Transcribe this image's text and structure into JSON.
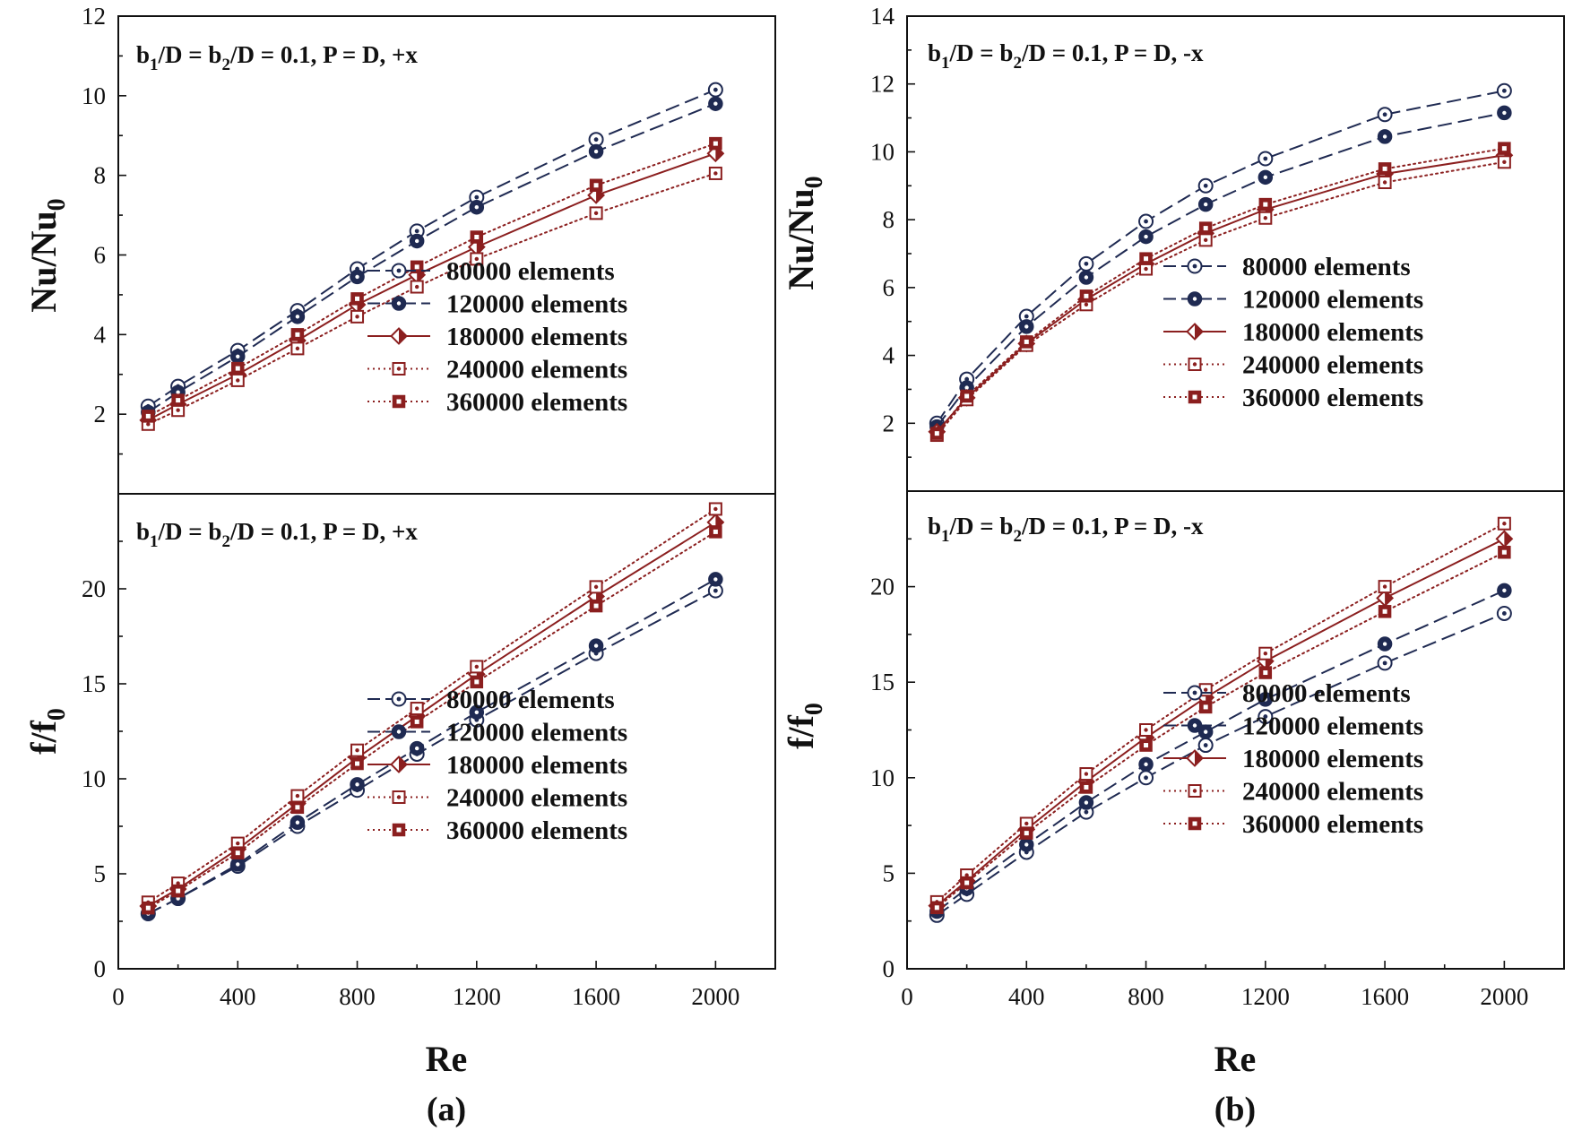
{
  "colors": {
    "navy": "#1f2a52",
    "maroon": "#8b1f1f",
    "axis": "#111111"
  },
  "legend": {
    "entries": [
      {
        "label": "80000 elements",
        "color": "#1f2a52",
        "dash": "dashed",
        "marker": "open-circle-dot"
      },
      {
        "label": "120000 elements",
        "color": "#1f2a52",
        "dash": "dashed",
        "marker": "filled-circle-dot"
      },
      {
        "label": "180000 elements",
        "color": "#8b1f1f",
        "dash": "solid",
        "marker": "diamond"
      },
      {
        "label": "240000 elements",
        "color": "#8b1f1f",
        "dash": "dotted",
        "marker": "open-square-dot"
      },
      {
        "label": "360000 elements",
        "color": "#8b1f1f",
        "dash": "dotted",
        "marker": "filled-square-dot"
      }
    ]
  },
  "chart_data": [
    {
      "id": "a-top",
      "type": "line",
      "annotation": {
        "b1": "b",
        "sub1": "1",
        "mid1": "/D = b",
        "sub2": "2",
        "rest": "/D = 0.1, P = D, +x"
      },
      "xlabel": "Re",
      "ylabel": {
        "main": "Nu/Nu",
        "sub": "0"
      },
      "xlim": [
        0,
        2200
      ],
      "ylim": [
        0,
        12
      ],
      "yticks": [
        2,
        4,
        6,
        8,
        10,
        12
      ],
      "legend_position": "bottom-right",
      "x": [
        100,
        200,
        400,
        600,
        800,
        1000,
        1200,
        1600,
        2000
      ],
      "series": [
        {
          "name": "80000 elements",
          "values": [
            2.2,
            2.7,
            3.6,
            4.6,
            5.65,
            6.6,
            7.45,
            8.9,
            10.15
          ]
        },
        {
          "name": "120000 elements",
          "values": [
            2.05,
            2.55,
            3.45,
            4.45,
            5.45,
            6.35,
            7.2,
            8.6,
            9.8
          ]
        },
        {
          "name": "180000 elements",
          "values": [
            1.85,
            2.25,
            3.0,
            3.85,
            4.75,
            5.5,
            6.2,
            7.5,
            8.55
          ]
        },
        {
          "name": "240000 elements",
          "values": [
            1.75,
            2.1,
            2.85,
            3.65,
            4.45,
            5.2,
            5.9,
            7.05,
            8.05
          ]
        },
        {
          "name": "360000 elements",
          "values": [
            1.95,
            2.35,
            3.15,
            4.0,
            4.9,
            5.7,
            6.45,
            7.75,
            8.8
          ]
        }
      ]
    },
    {
      "id": "a-bottom",
      "type": "line",
      "annotation": {
        "b1": "b",
        "sub1": "1",
        "mid1": "/D = b",
        "sub2": "2",
        "rest": "/D = 0.1, P = D, +x"
      },
      "xlabel": "Re",
      "ylabel": {
        "main": "f/f",
        "sub": "0"
      },
      "xlim": [
        0,
        2200
      ],
      "ylim": [
        0,
        25
      ],
      "yticks": [
        0,
        5,
        10,
        15,
        20
      ],
      "xticks": [
        0,
        400,
        800,
        1200,
        1600,
        2000
      ],
      "legend_position": "bottom-right",
      "x": [
        100,
        200,
        400,
        600,
        800,
        1000,
        1200,
        1600,
        2000
      ],
      "series": [
        {
          "name": "80000 elements",
          "values": [
            2.9,
            3.7,
            5.4,
            7.5,
            9.4,
            11.3,
            13.1,
            16.6,
            19.9
          ]
        },
        {
          "name": "120000 elements",
          "values": [
            2.9,
            3.7,
            5.5,
            7.7,
            9.7,
            11.6,
            13.5,
            17.0,
            20.5
          ]
        },
        {
          "name": "180000 elements",
          "values": [
            3.3,
            4.2,
            6.3,
            8.7,
            11.1,
            13.3,
            15.5,
            19.6,
            23.5
          ]
        },
        {
          "name": "240000 elements",
          "values": [
            3.5,
            4.5,
            6.6,
            9.1,
            11.5,
            13.7,
            15.9,
            20.1,
            24.2
          ]
        },
        {
          "name": "360000 elements",
          "values": [
            3.2,
            4.1,
            6.1,
            8.5,
            10.8,
            13.0,
            15.1,
            19.1,
            23.0
          ]
        }
      ]
    },
    {
      "id": "b-top",
      "type": "line",
      "annotation": {
        "b1": "b",
        "sub1": "1",
        "mid1": "/D = b",
        "sub2": "2",
        "rest": "/D = 0.1, P = D, -x"
      },
      "xlabel": "Re",
      "ylabel": {
        "main": "Nu/Nu",
        "sub": "0"
      },
      "xlim": [
        0,
        2200
      ],
      "ylim": [
        0,
        14
      ],
      "yticks": [
        2,
        4,
        6,
        8,
        10,
        12,
        14
      ],
      "legend_position": "bottom-right",
      "x": [
        100,
        200,
        400,
        600,
        800,
        1000,
        1200,
        1600,
        2000
      ],
      "series": [
        {
          "name": "80000 elements",
          "values": [
            2.0,
            3.3,
            5.15,
            6.7,
            7.95,
            9.0,
            9.8,
            11.1,
            11.8
          ]
        },
        {
          "name": "120000 elements",
          "values": [
            1.9,
            3.05,
            4.85,
            6.3,
            7.5,
            8.45,
            9.25,
            10.45,
            11.15
          ]
        },
        {
          "name": "180000 elements",
          "values": [
            1.75,
            2.75,
            4.35,
            5.65,
            6.7,
            7.6,
            8.3,
            9.35,
            9.9
          ]
        },
        {
          "name": "240000 elements",
          "values": [
            1.65,
            2.7,
            4.3,
            5.5,
            6.55,
            7.4,
            8.05,
            9.1,
            9.7
          ]
        },
        {
          "name": "360000 elements",
          "values": [
            1.7,
            2.8,
            4.4,
            5.75,
            6.85,
            7.75,
            8.45,
            9.5,
            10.1
          ]
        }
      ]
    },
    {
      "id": "b-bottom",
      "type": "line",
      "annotation": {
        "b1": "b",
        "sub1": "1",
        "mid1": "/D = b",
        "sub2": "2",
        "rest": "/D = 0.1, P = D, -x"
      },
      "xlabel": "Re",
      "ylabel": {
        "main": "f/f",
        "sub": "0"
      },
      "xlim": [
        0,
        2200
      ],
      "ylim": [
        0,
        25
      ],
      "yticks": [
        0,
        5,
        10,
        15,
        20
      ],
      "xticks": [
        0,
        400,
        800,
        1200,
        1600,
        2000
      ],
      "legend_position": "bottom-right",
      "x": [
        100,
        200,
        400,
        600,
        800,
        1000,
        1200,
        1600,
        2000
      ],
      "series": [
        {
          "name": "80000 elements",
          "values": [
            2.8,
            3.9,
            6.1,
            8.2,
            10.0,
            11.7,
            13.2,
            16.0,
            18.6
          ]
        },
        {
          "name": "120000 elements",
          "values": [
            3.0,
            4.2,
            6.5,
            8.7,
            10.7,
            12.4,
            14.1,
            17.0,
            19.8
          ]
        },
        {
          "name": "180000 elements",
          "values": [
            3.3,
            4.6,
            7.3,
            9.8,
            12.1,
            14.2,
            16.1,
            19.4,
            22.5
          ]
        },
        {
          "name": "240000 elements",
          "values": [
            3.5,
            4.9,
            7.6,
            10.2,
            12.5,
            14.6,
            16.5,
            20.0,
            23.3
          ]
        },
        {
          "name": "360000 elements",
          "values": [
            3.2,
            4.5,
            7.1,
            9.5,
            11.7,
            13.7,
            15.5,
            18.7,
            21.8
          ]
        }
      ]
    }
  ],
  "captions": [
    "(a)",
    "(b)"
  ]
}
